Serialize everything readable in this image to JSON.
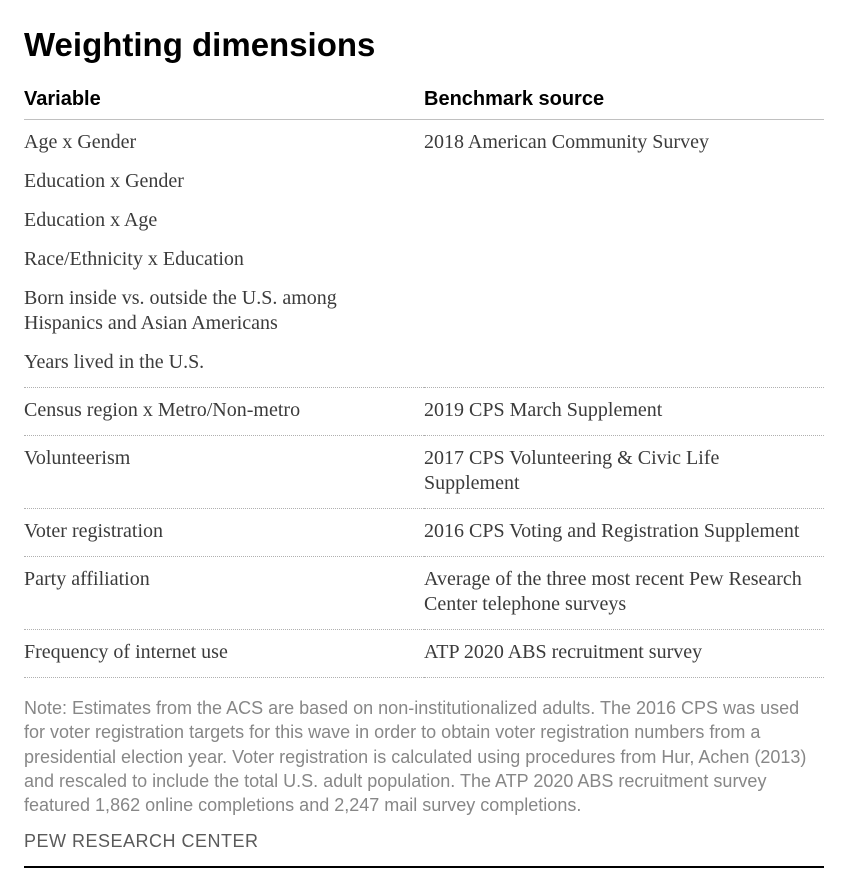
{
  "title": "Weighting dimensions",
  "headers": {
    "variable": "Variable",
    "source": "Benchmark source"
  },
  "groups": [
    {
      "source": "2018 American Community Survey",
      "vars": [
        "Age x Gender",
        "Education x Gender",
        "Education x Age",
        "Race/Ethnicity x Education",
        "Born inside vs. outside the U.S. among Hispanics and Asian Americans",
        "Years lived in the U.S."
      ]
    },
    {
      "source": "2019 CPS March Supplement",
      "vars": [
        "Census region x Metro/Non-metro"
      ]
    },
    {
      "source": "2017 CPS Volunteering & Civic Life Supplement",
      "vars": [
        "Volunteerism"
      ]
    },
    {
      "source": "2016 CPS Voting and Registration Supplement",
      "vars": [
        "Voter registration"
      ]
    },
    {
      "source": "Average of the three most recent Pew Research Center telephone surveys",
      "vars": [
        "Party affiliation"
      ]
    },
    {
      "source": "ATP 2020 ABS recruitment survey",
      "vars": [
        "Frequency of internet use"
      ]
    }
  ],
  "note": "Note: Estimates from the ACS are based on non-institutionalized adults.  The 2016 CPS was used for voter registration targets for this wave in order to obtain voter registration numbers from a presidential election year. Voter registration is calculated using procedures from Hur, Achen (2013) and rescaled to include the total U.S. adult population. The ATP 2020 ABS recruitment survey featured 1,862 online completions and 2,247 mail survey completions.",
  "attribution": "PEW RESEARCH CENTER",
  "style": {
    "title_fontsize": 33,
    "header_fontsize": 20,
    "cell_fontsize": 20,
    "note_fontsize": 18,
    "attribution_fontsize": 18,
    "title_color": "#000000",
    "text_color": "#3b3b3b",
    "note_color": "#878787",
    "attribution_color": "#5a5a5a",
    "solid_border_color": "#c0c0c0",
    "dotted_border_color": "#b0b0b0",
    "background_color": "#ffffff",
    "col_widths_pct": [
      50,
      50
    ]
  }
}
